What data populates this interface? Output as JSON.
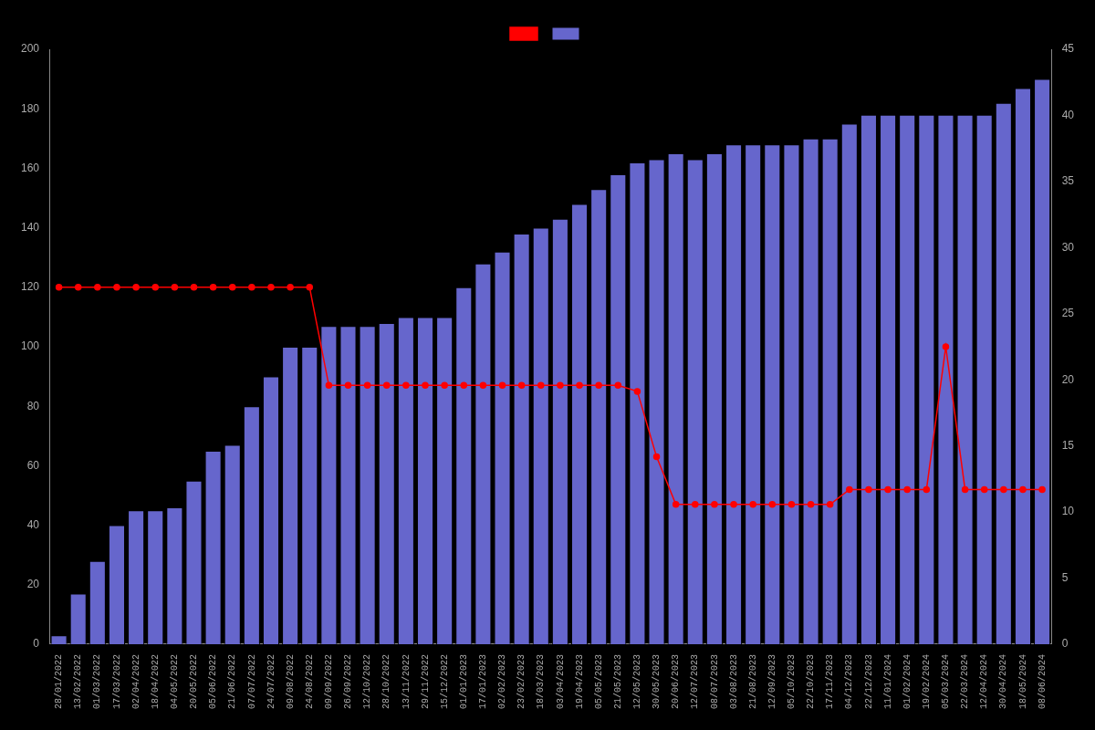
{
  "chart_data": {
    "type": "bar",
    "categories": [
      "28/01/2022",
      "13/02/2022",
      "01/03/2022",
      "17/03/2022",
      "02/04/2022",
      "18/04/2022",
      "04/05/2022",
      "20/05/2022",
      "05/06/2022",
      "21/06/2022",
      "07/07/2022",
      "24/07/2022",
      "09/08/2022",
      "24/08/2022",
      "09/09/2022",
      "26/09/2022",
      "12/10/2022",
      "28/10/2022",
      "13/11/2022",
      "29/11/2022",
      "15/12/2022",
      "01/01/2023",
      "17/01/2023",
      "02/02/2023",
      "23/02/2023",
      "18/03/2023",
      "03/04/2023",
      "19/04/2023",
      "05/05/2023",
      "21/05/2023",
      "12/05/2023",
      "30/05/2023",
      "20/06/2023",
      "12/07/2023",
      "08/07/2023",
      "03/08/2023",
      "21/08/2023",
      "12/09/2023",
      "05/10/2023",
      "22/10/2023",
      "17/11/2023",
      "04/12/2023",
      "22/12/2023",
      "11/01/2024",
      "01/02/2024",
      "19/02/2024",
      "05/03/2024",
      "22/03/2024",
      "12/04/2024",
      "30/04/2024",
      "18/05/2024",
      "08/06/2024"
    ],
    "series": [
      {
        "type": "bar",
        "color": "#6666cc",
        "values": [
          3,
          17,
          28,
          40,
          45,
          45,
          46,
          55,
          65,
          67,
          80,
          90,
          100,
          100,
          107,
          107,
          107,
          108,
          110,
          110,
          110,
          120,
          128,
          132,
          138,
          140,
          143,
          148,
          153,
          158,
          162,
          163,
          165,
          163,
          165,
          168,
          168,
          168,
          168,
          170,
          170,
          175,
          178,
          178,
          178,
          178,
          178,
          178,
          178,
          182,
          187,
          190
        ]
      },
      {
        "type": "line",
        "color": "#ff0000",
        "marker": "circle",
        "values": [
          120,
          120,
          120,
          120,
          120,
          120,
          120,
          120,
          120,
          120,
          120,
          120,
          120,
          120,
          87,
          87,
          87,
          87,
          87,
          87,
          87,
          87,
          87,
          87,
          87,
          87,
          87,
          87,
          87,
          87,
          85,
          63,
          47,
          47,
          47,
          47,
          47,
          47,
          47,
          47,
          47,
          52,
          52,
          52,
          52,
          52,
          100,
          52,
          52,
          52,
          52,
          52
        ]
      }
    ],
    "ylim": [
      0,
      200
    ],
    "yticks": [
      0,
      20,
      40,
      60,
      80,
      100,
      120,
      140,
      160,
      180,
      200
    ],
    "y2lim": [
      0,
      45
    ],
    "y2ticks": [
      0,
      5,
      10,
      15,
      20,
      25,
      30,
      35,
      40,
      45
    ],
    "grid": false,
    "legend": "top"
  }
}
